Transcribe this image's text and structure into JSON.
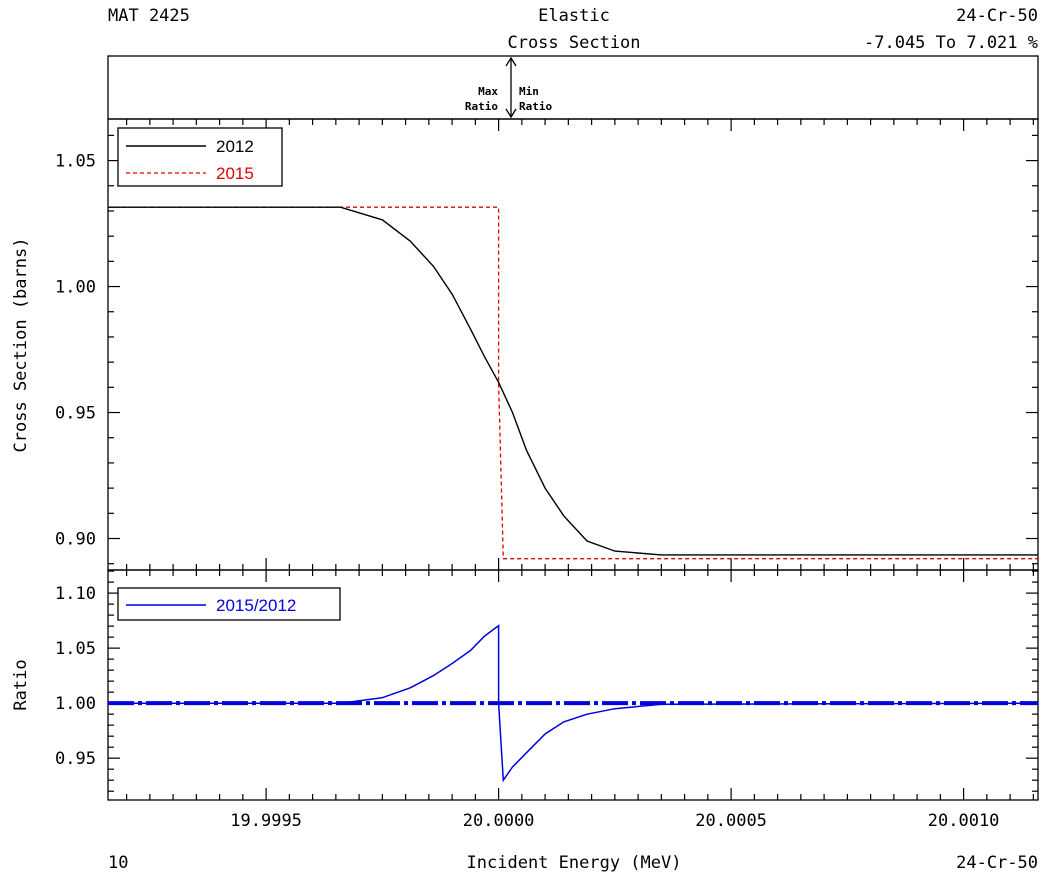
{
  "header": {
    "left": "MAT 2425",
    "center_line1": "Elastic",
    "center_line2": "Cross Section",
    "right_line1": "24-Cr-50",
    "right_line2": "-7.045 To 7.021 %"
  },
  "ratio_strip": {
    "max_label_1": "Max",
    "max_label_2": "Ratio",
    "min_label_1": "Min",
    "min_label_2": "Ratio"
  },
  "footer": {
    "left": "10",
    "center": "Incident Energy (MeV)",
    "right": "24-Cr-50"
  },
  "colors": {
    "series_2012": "#000000",
    "series_2015": "#e00000",
    "ratio": "#0000dd"
  },
  "chart_data": [
    {
      "type": "line",
      "xlabel": "Incident Energy (MeV)",
      "ylabel": "Cross Section (barns)",
      "xlim": [
        19.99916,
        20.00116
      ],
      "ylim": [
        0.8875,
        1.0665
      ],
      "xticks": [
        19.9995,
        20.0,
        20.0005,
        20.001
      ],
      "xtick_labels": [
        "19.9995",
        "20.0000",
        "20.0005",
        "20.0010"
      ],
      "yticks": [
        0.9,
        0.95,
        1.0,
        1.05
      ],
      "ytick_labels": [
        "0.90",
        "0.95",
        "1.00",
        "1.05"
      ],
      "legend_position": "top-left",
      "series": [
        {
          "name": "2012",
          "style": "solid",
          "x": [
            19.99916,
            19.99966,
            19.99975,
            19.99981,
            19.99986,
            19.9999,
            19.99994,
            19.99997,
            20.0,
            20.00003,
            20.00006,
            20.0001,
            20.00014,
            20.00019,
            20.00025,
            20.00035,
            20.00116
          ],
          "y": [
            1.0315,
            1.0315,
            1.0265,
            1.018,
            1.008,
            0.997,
            0.983,
            0.972,
            0.962,
            0.95,
            0.935,
            0.92,
            0.909,
            0.899,
            0.895,
            0.8935,
            0.8935
          ]
        },
        {
          "name": "2015",
          "style": "dashed",
          "x": [
            19.99916,
            20.0,
            20.0,
            20.00001,
            20.00116
          ],
          "y": [
            1.0315,
            1.0315,
            0.962,
            0.892,
            0.892
          ]
        }
      ]
    },
    {
      "type": "line",
      "xlabel": "",
      "ylabel": "Ratio",
      "xlim": [
        19.99916,
        20.00116
      ],
      "ylim": [
        0.912,
        1.121
      ],
      "yticks": [
        0.95,
        1.0,
        1.05,
        1.1
      ],
      "ytick_labels": [
        "0.95",
        "1.00",
        "1.05",
        "1.10"
      ],
      "legend_position": "top-left",
      "reference_line": 1.0,
      "series": [
        {
          "name": "2015/2012",
          "style": "solid",
          "x": [
            19.99916,
            19.99966,
            19.99975,
            19.99981,
            19.99986,
            19.9999,
            19.99994,
            19.99997,
            20.0,
            20.0,
            20.00001,
            20.00003,
            20.00006,
            20.0001,
            20.00014,
            20.00019,
            20.00025,
            20.00035,
            20.00116
          ],
          "y": [
            1.0,
            1.0,
            1.005,
            1.014,
            1.025,
            1.036,
            1.048,
            1.061,
            1.0705,
            1.0,
            0.93,
            0.942,
            0.955,
            0.972,
            0.983,
            0.99,
            0.995,
            0.999,
            1.0
          ]
        }
      ]
    }
  ]
}
